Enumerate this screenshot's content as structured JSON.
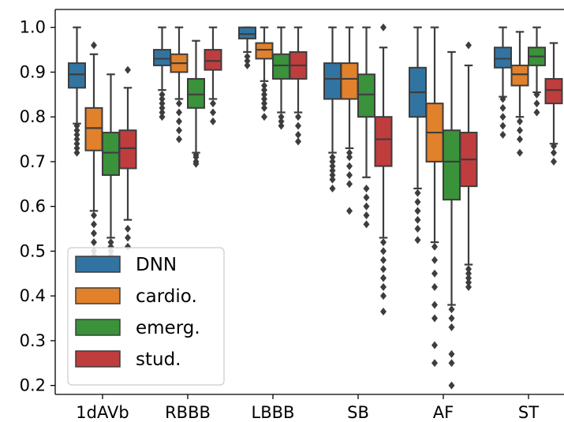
{
  "chart_data": {
    "type": "boxplot",
    "categories": [
      "1dAVb",
      "RBBB",
      "LBBB",
      "SB",
      "AF",
      "ST"
    ],
    "ylim": [
      0.18,
      1.04
    ],
    "yticks": [
      "0.2",
      "0.3",
      "0.4",
      "0.5",
      "0.6",
      "0.7",
      "0.8",
      "0.9",
      "1.0"
    ],
    "grid": false,
    "legend_position": "lower-left",
    "series": [
      {
        "name": "DNN",
        "color": "#3274a1",
        "boxes": [
          {
            "q1": 0.865,
            "median": 0.895,
            "q3": 0.92,
            "whislo": 0.785,
            "whishi": 1.0,
            "fliers": [
              0.78,
              0.77,
              0.76,
              0.75,
              0.74,
              0.73,
              0.72
            ]
          },
          {
            "q1": 0.915,
            "median": 0.93,
            "q3": 0.95,
            "whislo": 0.86,
            "whishi": 1.0,
            "fliers": [
              0.85,
              0.84,
              0.83,
              0.82,
              0.81,
              0.8
            ]
          },
          {
            "q1": 0.975,
            "median": 0.985,
            "q3": 1.0,
            "whislo": 0.945,
            "whishi": 1.0,
            "fliers": [
              0.935,
              0.925,
              0.915
            ]
          },
          {
            "q1": 0.84,
            "median": 0.885,
            "q3": 0.92,
            "whislo": 0.72,
            "whishi": 1.0,
            "fliers": [
              0.71,
              0.7,
              0.69,
              0.68,
              0.67,
              0.66,
              0.64
            ]
          },
          {
            "q1": 0.8,
            "median": 0.855,
            "q3": 0.91,
            "whislo": 0.64,
            "whishi": 1.0,
            "fliers": [
              0.63,
              0.61,
              0.59,
              0.57,
              0.55,
              0.525
            ]
          },
          {
            "q1": 0.91,
            "median": 0.93,
            "q3": 0.955,
            "whislo": 0.845,
            "whishi": 1.0,
            "fliers": [
              0.84,
              0.82,
              0.8,
              0.78,
              0.76
            ]
          }
        ]
      },
      {
        "name": "cardio.",
        "color": "#e1812c",
        "boxes": [
          {
            "q1": 0.725,
            "median": 0.775,
            "q3": 0.82,
            "whislo": 0.59,
            "whishi": 0.94,
            "fliers": [
              0.96,
              0.58,
              0.56,
              0.54,
              0.52,
              0.5,
              0.49
            ]
          },
          {
            "q1": 0.9,
            "median": 0.92,
            "q3": 0.94,
            "whislo": 0.84,
            "whishi": 1.0,
            "fliers": [
              0.83,
              0.81,
              0.79,
              0.77,
              0.75
            ]
          },
          {
            "q1": 0.93,
            "median": 0.95,
            "q3": 0.965,
            "whislo": 0.88,
            "whishi": 1.0,
            "fliers": [
              0.87,
              0.86,
              0.85,
              0.84,
              0.83,
              0.82,
              0.8
            ]
          },
          {
            "q1": 0.84,
            "median": 0.885,
            "q3": 0.92,
            "whislo": 0.73,
            "whishi": 1.0,
            "fliers": [
              0.72,
              0.71,
              0.69,
              0.67,
              0.65,
              0.59
            ]
          },
          {
            "q1": 0.7,
            "median": 0.765,
            "q3": 0.83,
            "whislo": 0.52,
            "whishi": 1.0,
            "fliers": [
              0.51,
              0.48,
              0.45,
              0.42,
              0.38,
              0.35,
              0.29,
              0.25
            ]
          },
          {
            "q1": 0.87,
            "median": 0.895,
            "q3": 0.915,
            "whislo": 0.8,
            "whishi": 0.99,
            "fliers": [
              0.79,
              0.77,
              0.75,
              0.72
            ]
          }
        ]
      },
      {
        "name": "emerg.",
        "color": "#3a923a",
        "boxes": [
          {
            "q1": 0.67,
            "median": 0.72,
            "q3": 0.765,
            "whislo": 0.53,
            "whishi": 0.895,
            "fliers": [
              0.52,
              0.51,
              0.5,
              0.49
            ]
          },
          {
            "q1": 0.82,
            "median": 0.85,
            "q3": 0.885,
            "whislo": 0.72,
            "whishi": 0.97,
            "fliers": [
              0.715,
              0.71,
              0.7,
              0.695
            ]
          },
          {
            "q1": 0.885,
            "median": 0.915,
            "q3": 0.94,
            "whislo": 0.81,
            "whishi": 1.0,
            "fliers": [
              0.8,
              0.79,
              0.78
            ]
          },
          {
            "q1": 0.8,
            "median": 0.85,
            "q3": 0.895,
            "whislo": 0.665,
            "whishi": 1.0,
            "fliers": [
              0.64,
              0.62,
              0.6,
              0.58,
              0.56
            ]
          },
          {
            "q1": 0.615,
            "median": 0.7,
            "q3": 0.77,
            "whislo": 0.38,
            "whishi": 0.945,
            "fliers": [
              0.37,
              0.35,
              0.33,
              0.27,
              0.25,
              0.2
            ]
          },
          {
            "q1": 0.915,
            "median": 0.935,
            "q3": 0.955,
            "whislo": 0.855,
            "whishi": 1.0,
            "fliers": [
              0.85,
              0.83,
              0.81
            ]
          }
        ]
      },
      {
        "name": "stud.",
        "color": "#c03d3e",
        "boxes": [
          {
            "q1": 0.685,
            "median": 0.73,
            "q3": 0.77,
            "whislo": 0.57,
            "whishi": 0.865,
            "fliers": [
              0.905,
              0.55,
              0.53,
              0.51
            ]
          },
          {
            "q1": 0.905,
            "median": 0.925,
            "q3": 0.95,
            "whislo": 0.84,
            "whishi": 1.0,
            "fliers": [
              0.83,
              0.81,
              0.79
            ]
          },
          {
            "q1": 0.885,
            "median": 0.915,
            "q3": 0.945,
            "whislo": 0.81,
            "whishi": 1.0,
            "fliers": [
              0.8,
              0.78,
              0.76,
              0.745
            ]
          },
          {
            "q1": 0.69,
            "median": 0.75,
            "q3": 0.8,
            "whislo": 0.53,
            "whishi": 0.955,
            "fliers": [
              1.0,
              0.52,
              0.5,
              0.48,
              0.46,
              0.44,
              0.42,
              0.4,
              0.365
            ]
          },
          {
            "q1": 0.645,
            "median": 0.705,
            "q3": 0.765,
            "whislo": 0.47,
            "whishi": 0.915,
            "fliers": [
              0.96,
              0.46,
              0.45,
              0.44,
              0.43,
              0.42
            ]
          },
          {
            "q1": 0.83,
            "median": 0.86,
            "q3": 0.885,
            "whislo": 0.74,
            "whishi": 0.965,
            "fliers": [
              0.735,
              0.72,
              0.7
            ]
          }
        ]
      }
    ]
  }
}
